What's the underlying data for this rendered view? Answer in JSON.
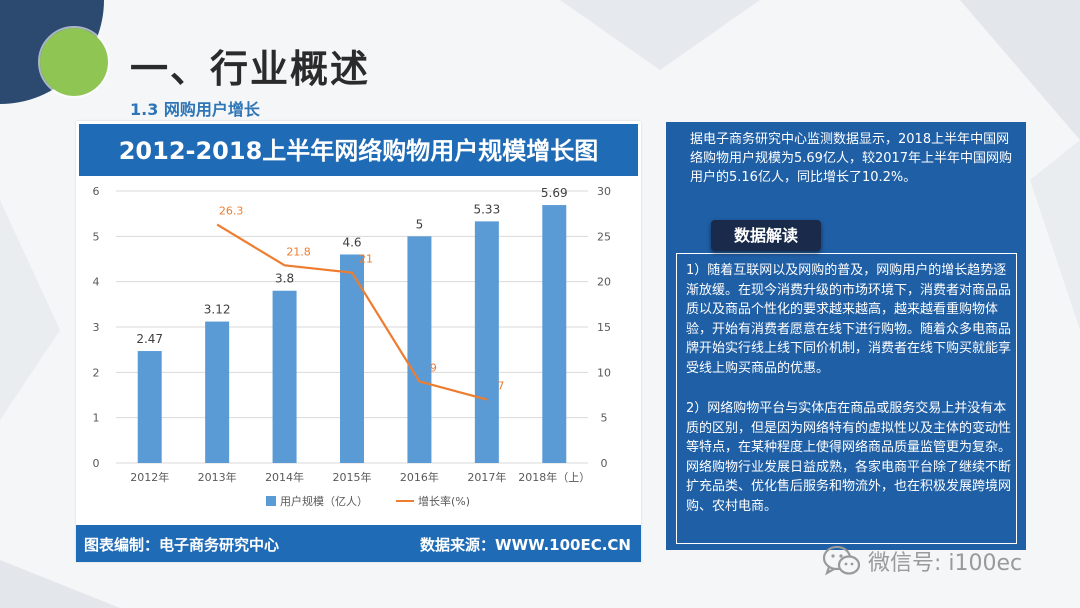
{
  "page": {
    "title": "一、行业概述",
    "subtitle": "1.3 网购用户增长"
  },
  "chart_header": {
    "title": "2012-2018上半年网络购物用户规模增长图",
    "footer_left": "图表编制：电子商务研究中心",
    "footer_right": "数据来源：WWW.100EC.CN"
  },
  "chart_data": {
    "type": "bar",
    "title": "2012-2018上半年网络购物用户规模增长图",
    "categories": [
      "2012年",
      "2013年",
      "2014年",
      "2015年",
      "2016年",
      "2017年",
      "2018年（上）"
    ],
    "series": [
      {
        "name": "用户规模（亿人）",
        "type": "bar",
        "axis": "left",
        "color": "#5b9bd5",
        "values": [
          2.47,
          3.12,
          3.8,
          4.6,
          5,
          5.33,
          5.69
        ]
      },
      {
        "name": "增长率(%)",
        "type": "line",
        "axis": "right",
        "color": "#ed7d31",
        "values": [
          null,
          26.3,
          21.8,
          21,
          9,
          7,
          null
        ]
      }
    ],
    "bar_labels": [
      "2.47",
      "3.12",
      "3.8",
      "4.6",
      "5",
      "5.33",
      "5.69"
    ],
    "line_labels": [
      "",
      "26.3",
      "21.8",
      "21",
      "9",
      "7",
      ""
    ],
    "ylim_left": [
      0,
      6
    ],
    "yticks_left": [
      "0",
      "1",
      "2",
      "3",
      "4",
      "5",
      "6"
    ],
    "ylim_right": [
      0,
      30
    ],
    "yticks_right": [
      "0",
      "5",
      "10",
      "15",
      "20",
      "25",
      "30"
    ],
    "grid": true,
    "legend": "bottom"
  },
  "panel": {
    "summary": "据电子商务研究中心监测数据显示，2018上半年中国网络购物用户规模为5.69亿人，较2017年上半年中国网购用户的5.16亿人，同比增长了10.2%。",
    "badge": "数据解读",
    "para1": "1）随着互联网以及网购的普及，网购用户的增长趋势逐渐放缓。在现今消费升级的市场环境下，消费者对商品品质以及商品个性化的要求越来越高，越来越看重购物体验，开始有消费者愿意在线下进行购物。随着众多电商品牌开始实行线上线下同价机制，消费者在线下购买就能享受线上购买商品的优惠。",
    "para2": "2）网络购物平台与实体店在商品或服务交易上并没有本质的区别，但是因为网络特有的虚拟性以及主体的变动性等特点，在某种程度上使得网络商品质量监管更为复杂。网络购物行业发展日益成熟，各家电商平台除了继续不断扩充品类、优化售后服务和物流外，也在积极发展跨境网购、农村电商。"
  },
  "watermark": {
    "text": "微信号: i100ec",
    "icon": "wechat-icon"
  },
  "colors": {
    "accent": "#1f6bb5",
    "bar": "#5b9bd5",
    "line": "#ed7d31",
    "green_circle": "#8fc553"
  }
}
